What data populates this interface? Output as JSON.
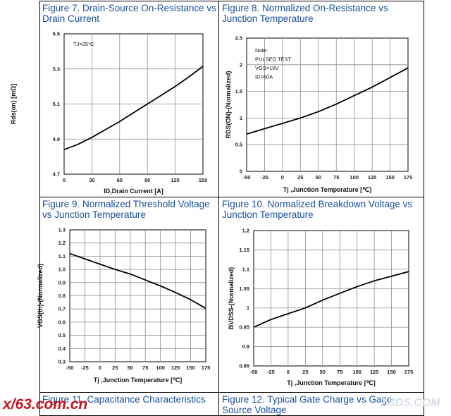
{
  "figures": [
    {
      "title_line1": "Figure 7. Drain-Source On-Resistance vs",
      "title_line2": "Drain Current"
    },
    {
      "title_line1": "Figure 8. Normalized On-Resistance vs",
      "title_line2": "Junction Temperature"
    },
    {
      "title_line1": "Figure 9. Normalized Threshold Voltage",
      "title_line2": "vs Junction Temperature"
    },
    {
      "title_line1": "Figure 10. Normalized Breakdown Voltage vs",
      "title_line2": "Junction Temperature"
    },
    {
      "title_line1": "Figure 11. Capacitance Characteristics",
      "title_line2": ""
    },
    {
      "title_line1": "Figure 12. Typical Gate Charge vs Gage-",
      "title_line2": "Source Voltage"
    }
  ],
  "watermark": {
    "left": "x/63.com.cn",
    "right": "ZSDS.COM"
  },
  "chart_data": [
    {
      "type": "line",
      "xlabel": "ID,Drain Current [A]",
      "ylabel": "Rds(on) [mΩ]",
      "annotation": [
        "TJ=25°C"
      ],
      "xlim": [
        0,
        150
      ],
      "ylim": [
        4.7,
        5.5
      ],
      "xticks": [
        0,
        30,
        60,
        90,
        120,
        150
      ],
      "yticks": [
        4.7,
        4.9,
        5.1,
        5.3,
        5.5
      ],
      "ytick_labels": [
        "4.7",
        "4.9",
        "5.1",
        "5.3",
        "5.5"
      ],
      "grid": true,
      "x": [
        0,
        15,
        30,
        45,
        60,
        75,
        90,
        105,
        120,
        135,
        150
      ],
      "y": [
        4.84,
        4.87,
        4.91,
        4.955,
        5.0,
        5.05,
        5.1,
        5.15,
        5.2,
        5.255,
        5.315
      ]
    },
    {
      "type": "line",
      "xlabel": "Tj ,Junction Temperature [℃]",
      "ylabel": "RDS(ON)-(Normalized)",
      "annotation": [
        "Note:",
        "PULSED TEST",
        "VGS=10V",
        "ID=60A"
      ],
      "xlim": [
        -50,
        175
      ],
      "ylim": [
        0,
        2.5
      ],
      "xticks": [
        -50,
        -25,
        0,
        25,
        50,
        75,
        100,
        125,
        150,
        175
      ],
      "yticks": [
        0,
        0.5,
        1,
        1.5,
        2,
        2.5
      ],
      "ytick_labels": [
        "0",
        "0.5",
        "1",
        "1.5",
        "2",
        "2.5"
      ],
      "grid": true,
      "x": [
        -50,
        -25,
        0,
        25,
        50,
        75,
        100,
        125,
        150,
        175
      ],
      "y": [
        0.7,
        0.8,
        0.9,
        1.0,
        1.12,
        1.26,
        1.42,
        1.58,
        1.76,
        1.94
      ]
    },
    {
      "type": "line",
      "xlabel": "Tj ,Junction Temperature [℃]",
      "ylabel": "VGS(th)-(Normalized)",
      "annotation": [],
      "xlim": [
        -50,
        175
      ],
      "ylim": [
        0.3,
        1.3
      ],
      "xticks": [
        -50,
        -25,
        0,
        25,
        50,
        75,
        100,
        125,
        150,
        175
      ],
      "yticks": [
        0.3,
        0.4,
        0.5,
        0.6,
        0.7,
        0.8,
        0.9,
        1.0,
        1.1,
        1.2,
        1.3
      ],
      "ytick_labels": [
        "0.3",
        "0.4",
        "0.5",
        "0.6",
        "0.7",
        "0.8",
        "0.9",
        "1.0",
        "1.1",
        "1.2",
        "1.3"
      ],
      "grid": true,
      "x": [
        -50,
        -25,
        0,
        25,
        50,
        75,
        100,
        125,
        150,
        175
      ],
      "y": [
        1.12,
        1.08,
        1.04,
        1.0,
        0.965,
        0.92,
        0.875,
        0.825,
        0.77,
        0.705
      ]
    },
    {
      "type": "line",
      "xlabel": "Tj ,Junction Temperature [℃]",
      "ylabel": "BVDSS-(Normalized)",
      "annotation": [],
      "xlim": [
        -50,
        175
      ],
      "ylim": [
        0.85,
        1.2
      ],
      "xticks": [
        -50,
        -25,
        0,
        25,
        50,
        75,
        100,
        125,
        150,
        175
      ],
      "yticks": [
        0.85,
        0.9,
        0.95,
        1.0,
        1.05,
        1.1,
        1.15,
        1.2
      ],
      "ytick_labels": [
        "0.85",
        "0.9",
        "0.95",
        "1",
        "1.05",
        "1.1",
        "1.15",
        "1.2"
      ],
      "grid": true,
      "x": [
        -50,
        -25,
        0,
        25,
        50,
        75,
        100,
        125,
        150,
        175
      ],
      "y": [
        0.95,
        0.97,
        0.985,
        1.0,
        1.02,
        1.038,
        1.055,
        1.07,
        1.082,
        1.094
      ]
    }
  ]
}
